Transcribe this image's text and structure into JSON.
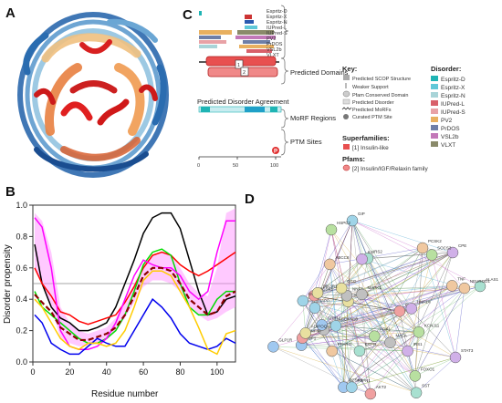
{
  "panels": {
    "a_label": "A",
    "b_label": "B",
    "c_label": "C",
    "d_label": "D"
  },
  "panel_c": {
    "predictors_stack": [
      "Espritz-D",
      "Espritz-X",
      "Espritz-N",
      "IUPred-L",
      "IUPred-S",
      "PV2",
      "PrDOS",
      "VSL2b",
      "VLXT"
    ],
    "section_predicted_domains": "Predicted Domains",
    "agreement_title": "Predicted Disorder Agreement",
    "section_morf": "MoRF Regions",
    "section_ptm": "PTM Sites",
    "ptm_badge": "P",
    "domain_markers": [
      "1",
      "2"
    ],
    "x_ticks": [
      "0",
      "50",
      "100"
    ],
    "key_title": "Key:",
    "key_items": [
      "Predicted SCOP Structure",
      "Weaker Support",
      "Pfam Conserved Domain",
      "Predicted Disorder",
      "Predicted MoRFs",
      "Curated PTM Site"
    ],
    "disorder_title": "Disorder:",
    "disorder_items": [
      {
        "label": "Espritz-D",
        "color": "#1fb4b4"
      },
      {
        "label": "Espritz-X",
        "color": "#5fc8d8"
      },
      {
        "label": "Espritz-N",
        "color": "#a8d4d8"
      },
      {
        "label": "IUPred-L",
        "color": "#d8606a"
      },
      {
        "label": "IUPred-S",
        "color": "#e8a2a6"
      },
      {
        "label": "PV2",
        "color": "#e8b060"
      },
      {
        "label": "PrDOS",
        "color": "#6e7fa8"
      },
      {
        "label": "VSL2b",
        "color": "#c278b8"
      },
      {
        "label": "VLXT",
        "color": "#8a8a6a"
      }
    ],
    "superfamilies_title": "Superfamilies:",
    "superfamily_item": "[1] Insulin-like",
    "pfams_title": "Pfams:",
    "pfam_item": "[2] Insulin/IGF/Relaxin family"
  },
  "chart_data": {
    "type": "line",
    "xlabel": "Residue number",
    "ylabel": "Disorder propensity",
    "xlim": [
      0,
      110
    ],
    "ylim": [
      0,
      1
    ],
    "x_ticks": [
      0,
      20,
      40,
      60,
      80,
      100
    ],
    "y_ticks": [
      0,
      0.2,
      0.4,
      0.6,
      0.8,
      1.0
    ],
    "threshold": 0.5,
    "x": [
      1,
      5,
      10,
      15,
      20,
      25,
      30,
      35,
      40,
      45,
      50,
      55,
      60,
      65,
      70,
      75,
      80,
      85,
      90,
      95,
      100,
      105,
      110
    ],
    "series": [
      {
        "color": "#000000",
        "values": [
          0.75,
          0.5,
          0.35,
          0.28,
          0.25,
          0.2,
          0.2,
          0.22,
          0.25,
          0.35,
          0.5,
          0.65,
          0.82,
          0.92,
          0.95,
          0.95,
          0.85,
          0.65,
          0.45,
          0.3,
          0.32,
          0.4,
          0.42
        ]
      },
      {
        "color": "#ff0000",
        "values": [
          0.6,
          0.5,
          0.42,
          0.32,
          0.3,
          0.26,
          0.24,
          0.26,
          0.28,
          0.3,
          0.38,
          0.48,
          0.6,
          0.68,
          0.7,
          0.68,
          0.62,
          0.58,
          0.55,
          0.58,
          0.62,
          0.66,
          0.7
        ]
      },
      {
        "color": "#00dd00",
        "values": [
          0.45,
          0.35,
          0.3,
          0.25,
          0.2,
          0.15,
          0.12,
          0.12,
          0.15,
          0.2,
          0.3,
          0.45,
          0.62,
          0.7,
          0.72,
          0.68,
          0.5,
          0.35,
          0.3,
          0.3,
          0.4,
          0.45,
          0.45
        ]
      },
      {
        "color": "#ff00ff",
        "values": [
          0.92,
          0.86,
          0.6,
          0.2,
          0.1,
          0.08,
          0.08,
          0.1,
          0.15,
          0.25,
          0.4,
          0.55,
          0.65,
          0.62,
          0.6,
          0.6,
          0.55,
          0.45,
          0.4,
          0.45,
          0.7,
          0.9,
          0.9
        ]
      },
      {
        "color": "#0000ee",
        "values": [
          0.3,
          0.25,
          0.12,
          0.08,
          0.05,
          0.05,
          0.1,
          0.15,
          0.12,
          0.1,
          0.1,
          0.2,
          0.3,
          0.4,
          0.35,
          0.28,
          0.18,
          0.12,
          0.1,
          0.08,
          0.1,
          0.15,
          0.12
        ]
      },
      {
        "color": "#ffcc00",
        "values": [
          0.4,
          0.35,
          0.25,
          0.15,
          0.1,
          0.08,
          0.12,
          0.12,
          0.1,
          0.12,
          0.2,
          0.35,
          0.52,
          0.58,
          0.58,
          0.55,
          0.45,
          0.35,
          0.22,
          0.08,
          0.05,
          0.18,
          0.2
        ]
      },
      {
        "color": "#8b0000",
        "dashed": true,
        "values": [
          0.43,
          0.38,
          0.32,
          0.22,
          0.18,
          0.14,
          0.14,
          0.16,
          0.18,
          0.22,
          0.3,
          0.42,
          0.55,
          0.6,
          0.6,
          0.58,
          0.5,
          0.4,
          0.35,
          0.3,
          0.32,
          0.42,
          0.45
        ]
      }
    ],
    "band_lower": [
      0.6,
      0.5,
      0.35,
      0.15,
      0.12,
      0.1,
      0.1,
      0.12,
      0.15,
      0.2,
      0.28,
      0.38,
      0.48,
      0.52,
      0.52,
      0.5,
      0.45,
      0.35,
      0.3,
      0.26,
      0.28,
      0.32,
      0.35
    ],
    "band_upper": [
      0.95,
      0.9,
      0.7,
      0.35,
      0.25,
      0.2,
      0.18,
      0.2,
      0.22,
      0.28,
      0.38,
      0.5,
      0.62,
      0.68,
      0.7,
      0.68,
      0.6,
      0.5,
      0.44,
      0.42,
      0.6,
      0.95,
      0.98
    ]
  },
  "panel_d": {
    "node_labels": [
      "GIP",
      "HSPC2",
      "PCSK2",
      "CPE",
      "PCSK1",
      "PCSK3",
      "SLC2A2",
      "ALAS1",
      "NNF3",
      "GCK",
      "PDX1",
      "NEUROD1",
      "IRS1",
      "INSR",
      "IGF1",
      "GCG",
      "SST",
      "LEP",
      "IAPP",
      "FOXO1",
      "PPARG",
      "STAT3",
      "AKT2",
      "GRB10",
      "PIK3R1",
      "IRS2",
      "MAFA",
      "CDKN1B",
      "KCNJ11",
      "ABCC8",
      "HNF1A",
      "HNF4A",
      "GLP1R",
      "ADIPOQ",
      "EGFR",
      "MAPK1",
      "PTPN1",
      "SOCS3",
      "TNF",
      "IL6"
    ]
  }
}
